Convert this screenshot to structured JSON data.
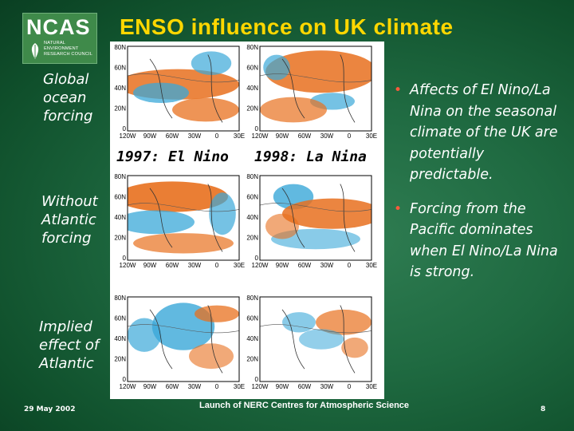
{
  "logo": {
    "mark": "NCAS",
    "subtitle": "NATURAL\nENVIRONMENT\nRESEARCH COUNCIL"
  },
  "title": "ENSO influence on UK climate",
  "row_labels": [
    "Global\nocean\nforcing",
    "Without\nAtlantic\nforcing",
    "Implied\neffect of\nAtlantic"
  ],
  "column_labels": [
    "1997: El Nino",
    "1998: La Nina"
  ],
  "map_axes": {
    "lat_labels": [
      "80N",
      "60N",
      "40N",
      "20N",
      "0"
    ],
    "lon_labels": [
      "120W",
      "90W",
      "60W",
      "30W",
      "0",
      "30E"
    ]
  },
  "bullets": [
    "Affects of El Nino/La Nina on the seasonal climate of the UK are potentially predictable.",
    "Forcing from the Pacific dominates when El Nino/La Nina is strong."
  ],
  "footer": {
    "date": "29 May 2002",
    "center": "Launch of NERC Centres for Atmospheric Science",
    "page": "8"
  },
  "colors": {
    "title": "#ffd700",
    "bullet_dot": "#ff5a3c",
    "warm": "#e8701e",
    "cool": "#3aa8d8"
  }
}
